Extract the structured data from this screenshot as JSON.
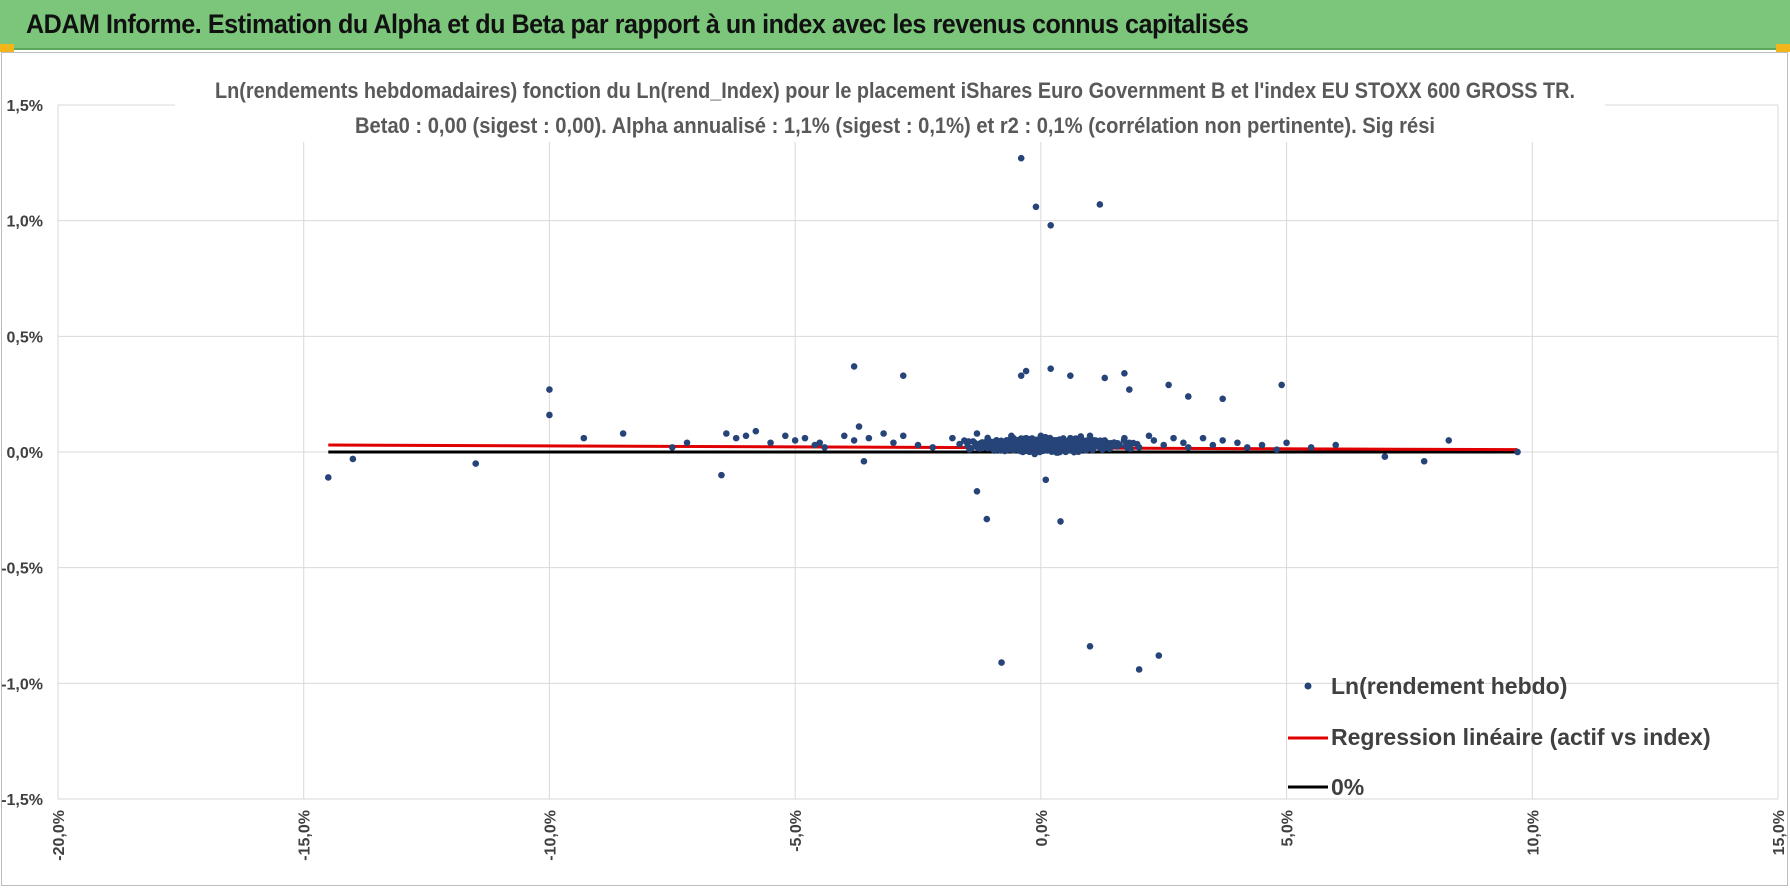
{
  "header": {
    "title": "ADAM Informe. Estimation du Alpha et du Beta par rapport à un index avec les revenus connus capitalisés"
  },
  "colors": {
    "banner": "#7bc67b",
    "points": "#264478",
    "regression": "#e00000",
    "zero_line": "#000000",
    "grid": "#d9d9d9"
  },
  "chart_data": {
    "type": "scatter",
    "title": [
      "Ln(rendements hebdomadaires) fonction du Ln(rend_Index) pour le placement iShares Euro Government B et l'index EU STOXX 600 GROSS TR.",
      "Beta0 : 0,00 (sigest : 0,00).  Alpha annualisé : 1,1% (sigest : 0,1%) et r2 : 0,1% (corrélation non pertinente). Sig rési"
    ],
    "xlim": [
      -0.2,
      0.15
    ],
    "ylim": [
      -0.015,
      0.015
    ],
    "x_ticks": [
      -0.2,
      -0.15,
      -0.1,
      -0.05,
      0.0,
      0.05,
      0.1,
      0.15
    ],
    "x_tick_labels": [
      "-20,0%",
      "-15,0%",
      "-10,0%",
      "-5,0%",
      "0,0%",
      "5,0%",
      "10,0%",
      "15,0%"
    ],
    "y_ticks": [
      0.015,
      0.01,
      0.005,
      0.0,
      -0.005,
      -0.01,
      -0.015
    ],
    "y_tick_labels": [
      "1,5%",
      "1,0%",
      "0,5%",
      "0,0%",
      "-0,5%",
      "-1,0%",
      "-1,5%"
    ],
    "legend": [
      "Ln(rendement hebdo)",
      "Regression linéaire (actif vs index)",
      "0%"
    ],
    "legend_position": "bottom-right",
    "series": [
      {
        "name": "Ln(rendement hebdo)",
        "kind": "points",
        "x": [
          -0.145,
          -0.14,
          -0.115,
          -0.1,
          -0.1,
          -0.093,
          -0.085,
          -0.075,
          -0.072,
          -0.065,
          -0.064,
          -0.062,
          -0.06,
          -0.058,
          -0.055,
          -0.052,
          -0.05,
          -0.048,
          -0.046,
          -0.045,
          -0.044,
          -0.04,
          -0.038,
          -0.037,
          -0.036,
          -0.035,
          -0.032,
          -0.03,
          -0.028,
          -0.025,
          -0.022,
          -0.018,
          -0.015,
          -0.013,
          -0.011,
          -0.009,
          -0.008,
          -0.006,
          -0.004,
          -0.003,
          -0.002,
          0.0,
          0.001,
          0.003,
          0.005,
          0.006,
          0.007,
          0.008,
          0.01,
          0.012,
          0.013,
          0.015,
          0.017,
          0.018,
          0.02,
          0.022,
          0.023,
          0.025,
          0.027,
          0.029,
          0.03,
          0.033,
          0.035,
          0.037,
          0.04,
          0.042,
          0.045,
          0.048,
          0.05,
          0.055,
          0.06,
          0.07,
          0.078,
          0.083,
          0.097,
          -0.004,
          -0.001,
          0.002,
          0.012,
          -0.008,
          0.01,
          0.02,
          0.024,
          -0.011,
          0.004,
          -0.038,
          -0.028,
          0.017,
          -0.004,
          -0.003,
          0.002,
          0.006,
          0.013,
          0.018,
          0.026,
          0.03,
          0.037,
          0.049,
          0.001,
          -0.013
        ],
        "y": [
          -0.0011,
          -0.0003,
          -0.0005,
          0.0027,
          0.0016,
          0.0006,
          0.0008,
          0.0002,
          0.0004,
          -0.001,
          0.0008,
          0.0006,
          0.0007,
          0.0009,
          0.0004,
          0.0007,
          0.0005,
          0.0006,
          0.0003,
          0.0004,
          0.0002,
          0.0007,
          0.0005,
          0.0011,
          -0.0004,
          0.0006,
          0.0008,
          0.0004,
          0.0007,
          0.0003,
          0.0002,
          0.0006,
          0.0004,
          0.0008,
          0.0002,
          0.0005,
          0.0003,
          0.0007,
          0.0001,
          0.0006,
          0.0004,
          0.0007,
          0.0002,
          0.0005,
          0.0003,
          0.0006,
          0.0001,
          0.0004,
          0.0007,
          0.0002,
          0.0005,
          0.0003,
          0.0006,
          0.0004,
          0.0002,
          0.0007,
          0.0005,
          0.0003,
          0.0006,
          0.0004,
          0.0002,
          0.0006,
          0.0003,
          0.0005,
          0.0004,
          0.0002,
          0.0003,
          0.0001,
          0.0004,
          0.0002,
          0.0003,
          -0.0002,
          -0.0004,
          0.0005,
          0.0,
          0.0127,
          0.0106,
          0.0098,
          0.0107,
          -0.0091,
          -0.0084,
          -0.0094,
          -0.0088,
          -0.0029,
          -0.003,
          0.0037,
          0.0033,
          0.0034,
          0.0033,
          0.0035,
          0.0036,
          0.0033,
          0.0032,
          0.0027,
          0.0029,
          0.0024,
          0.0023,
          0.0029,
          -0.0012,
          -0.0017
        ]
      },
      {
        "name": "Regression linéaire (actif vs index)",
        "kind": "line",
        "x": [
          -0.145,
          0.097
        ],
        "y": [
          0.0003,
          0.0001
        ]
      },
      {
        "name": "0%",
        "kind": "line",
        "x": [
          -0.145,
          0.097
        ],
        "y": [
          0.0,
          0.0
        ]
      }
    ]
  }
}
